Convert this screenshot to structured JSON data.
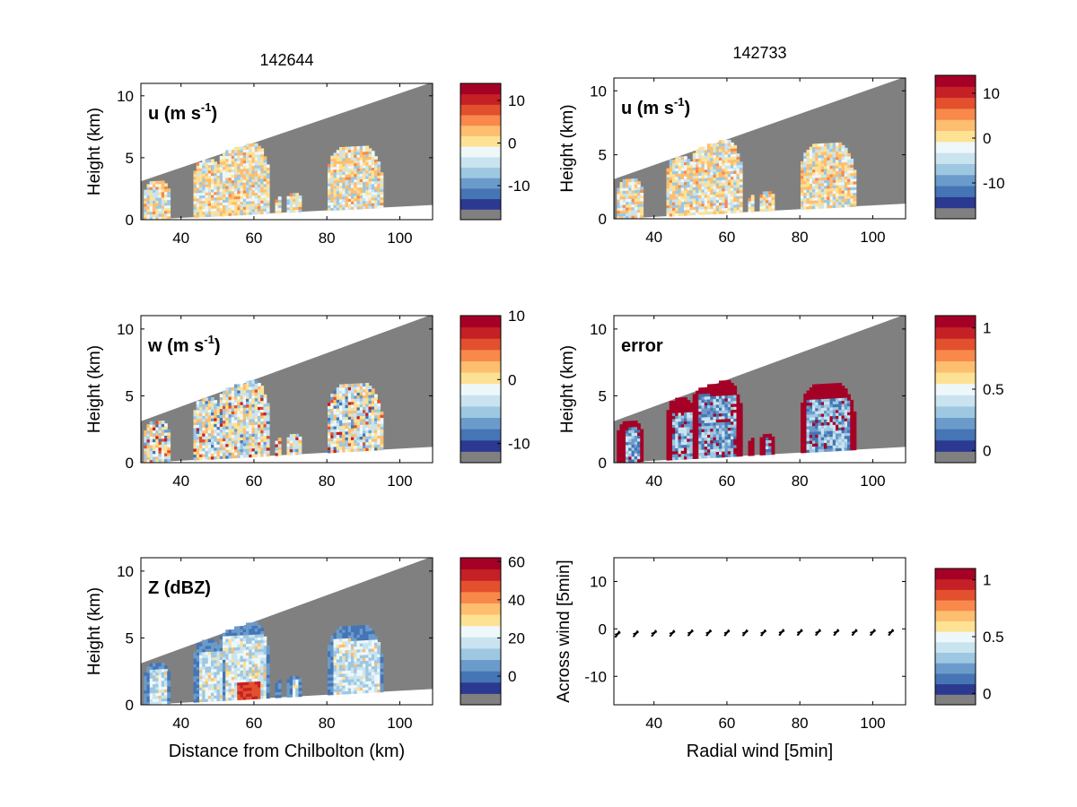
{
  "colors": {
    "missing_gray": "#808080",
    "frame": "#000000",
    "colormap": [
      "#2b3990",
      "#4575b4",
      "#6b9bcb",
      "#9ec7e1",
      "#c9e4ef",
      "#eef7f9",
      "#fee294",
      "#fdbe6f",
      "#f8894b",
      "#e2502d",
      "#c52026",
      "#a50026"
    ]
  },
  "chart_data": [
    {
      "type": "heatmap",
      "title": "142644",
      "label": "u (m s⁻¹)",
      "ylabel": "Height (km)",
      "xlabel": "",
      "xlim": [
        29,
        109
      ],
      "ylim": [
        0,
        11
      ],
      "xticks": [
        "40",
        "60",
        "80",
        "100"
      ],
      "yticks": [
        "0",
        "5",
        "10"
      ],
      "colorbar": {
        "ticks": [
          "10",
          "0",
          "-10"
        ],
        "range": [
          -18,
          14
        ],
        "tick_values": [
          10,
          0,
          -10
        ]
      }
    },
    {
      "type": "heatmap",
      "title": "142733",
      "label": "u (m s⁻¹)",
      "ylabel": "Height (km)",
      "xlabel": "",
      "xlim": [
        29,
        109
      ],
      "ylim": [
        0,
        11
      ],
      "xticks": [
        "40",
        "60",
        "80",
        "100"
      ],
      "yticks": [
        "0",
        "5",
        "10"
      ],
      "colorbar": {
        "ticks": [
          "10",
          "0",
          "-10"
        ],
        "range": [
          -18,
          14
        ],
        "tick_values": [
          10,
          0,
          -10
        ]
      }
    },
    {
      "type": "heatmap",
      "title": "",
      "label": "w (m s⁻¹)",
      "ylabel": "Height (km)",
      "xlabel": "",
      "xlim": [
        29,
        109
      ],
      "ylim": [
        0,
        11
      ],
      "xticks": [
        "40",
        "60",
        "80",
        "100"
      ],
      "yticks": [
        "0",
        "5",
        "10"
      ],
      "colorbar": {
        "ticks": [
          "10",
          "0",
          "-10"
        ],
        "range": [
          -13,
          10
        ],
        "tick_values": [
          10,
          0,
          -10
        ]
      }
    },
    {
      "type": "heatmap",
      "title": "",
      "label": "error",
      "ylabel": "Height (km)",
      "xlabel": "",
      "xlim": [
        29,
        109
      ],
      "ylim": [
        0,
        11
      ],
      "xticks": [
        "40",
        "60",
        "80",
        "100"
      ],
      "yticks": [
        "0",
        "5",
        "10"
      ],
      "colorbar": {
        "ticks": [
          "1",
          "0.5",
          "0"
        ],
        "range": [
          -0.1,
          1.1
        ],
        "tick_values": [
          1,
          0.5,
          0
        ]
      }
    },
    {
      "type": "heatmap",
      "title": "",
      "label": "Z (dBZ)",
      "ylabel": "Height (km)",
      "xlabel": "Distance from Chilbolton (km)",
      "xlim": [
        29,
        109
      ],
      "ylim": [
        0,
        11
      ],
      "xticks": [
        "40",
        "60",
        "80",
        "100"
      ],
      "yticks": [
        "0",
        "5",
        "10"
      ],
      "colorbar": {
        "ticks": [
          "60",
          "40",
          "20",
          "0"
        ],
        "range": [
          -15,
          62
        ],
        "tick_values": [
          60,
          40,
          20,
          0
        ]
      }
    },
    {
      "type": "scatter",
      "title": "",
      "label": "",
      "ylabel": "Across wind [5min]",
      "xlabel": "Radial wind [5min]",
      "xlim": [
        29,
        109
      ],
      "ylim": [
        -16,
        15
      ],
      "xticks": [
        "40",
        "60",
        "80",
        "100"
      ],
      "yticks": [
        "10",
        "0",
        "-10"
      ],
      "x": [
        30,
        35,
        40,
        45,
        50,
        55,
        60,
        65,
        70,
        75,
        80,
        85,
        90,
        95,
        100,
        105
      ],
      "y": [
        -1.2,
        -1.1,
        -1.0,
        -1.0,
        -0.9,
        -0.9,
        -0.9,
        -0.9,
        -0.9,
        -0.8,
        -0.8,
        -0.8,
        -0.8,
        -0.8,
        -0.8,
        -0.8
      ],
      "colorbar": {
        "ticks": [
          "1",
          "0.5",
          "0"
        ],
        "range": [
          -0.1,
          1.1
        ],
        "tick_values": [
          1,
          0.5,
          0
        ]
      }
    }
  ]
}
